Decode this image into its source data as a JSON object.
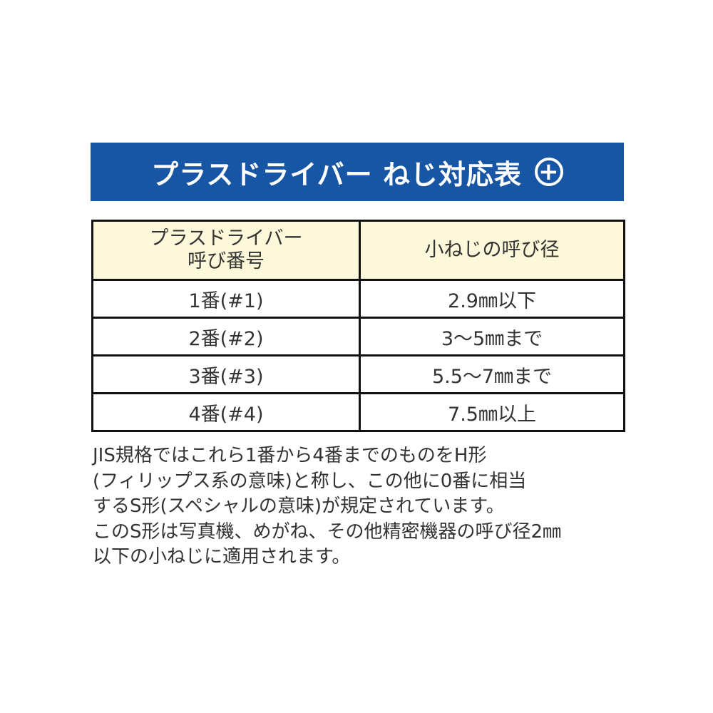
{
  "banner": {
    "title": "プラスドライバー ねじ対応表",
    "icon": "plus-circle-icon",
    "color": "#1656a4"
  },
  "table": {
    "headers": [
      "プラスドライバー\n呼び番号",
      "小ねじの呼び径"
    ],
    "header_lines": [
      "プラスドライバー",
      "呼び番号"
    ],
    "header_bg": "#fdf8d9",
    "rows": [
      [
        "1番(#1)",
        "2.9㎜以下"
      ],
      [
        "2番(#2)",
        "3〜5㎜まで"
      ],
      [
        "3番(#3)",
        "5.5〜7㎜まで"
      ],
      [
        "4番(#4)",
        "7.5㎜以上"
      ]
    ]
  },
  "note": {
    "lines": [
      "JIS規格ではこれら1番から4番までのものをH形",
      "(フィリップス系の意味)と称し、この他に0番に相当",
      "するS形(スペシャルの意味)が規定されています。",
      "このS形は写真機、めがね、その他精密機器の呼び径2㎜",
      "以下の小ねじに適用されます。"
    ]
  }
}
